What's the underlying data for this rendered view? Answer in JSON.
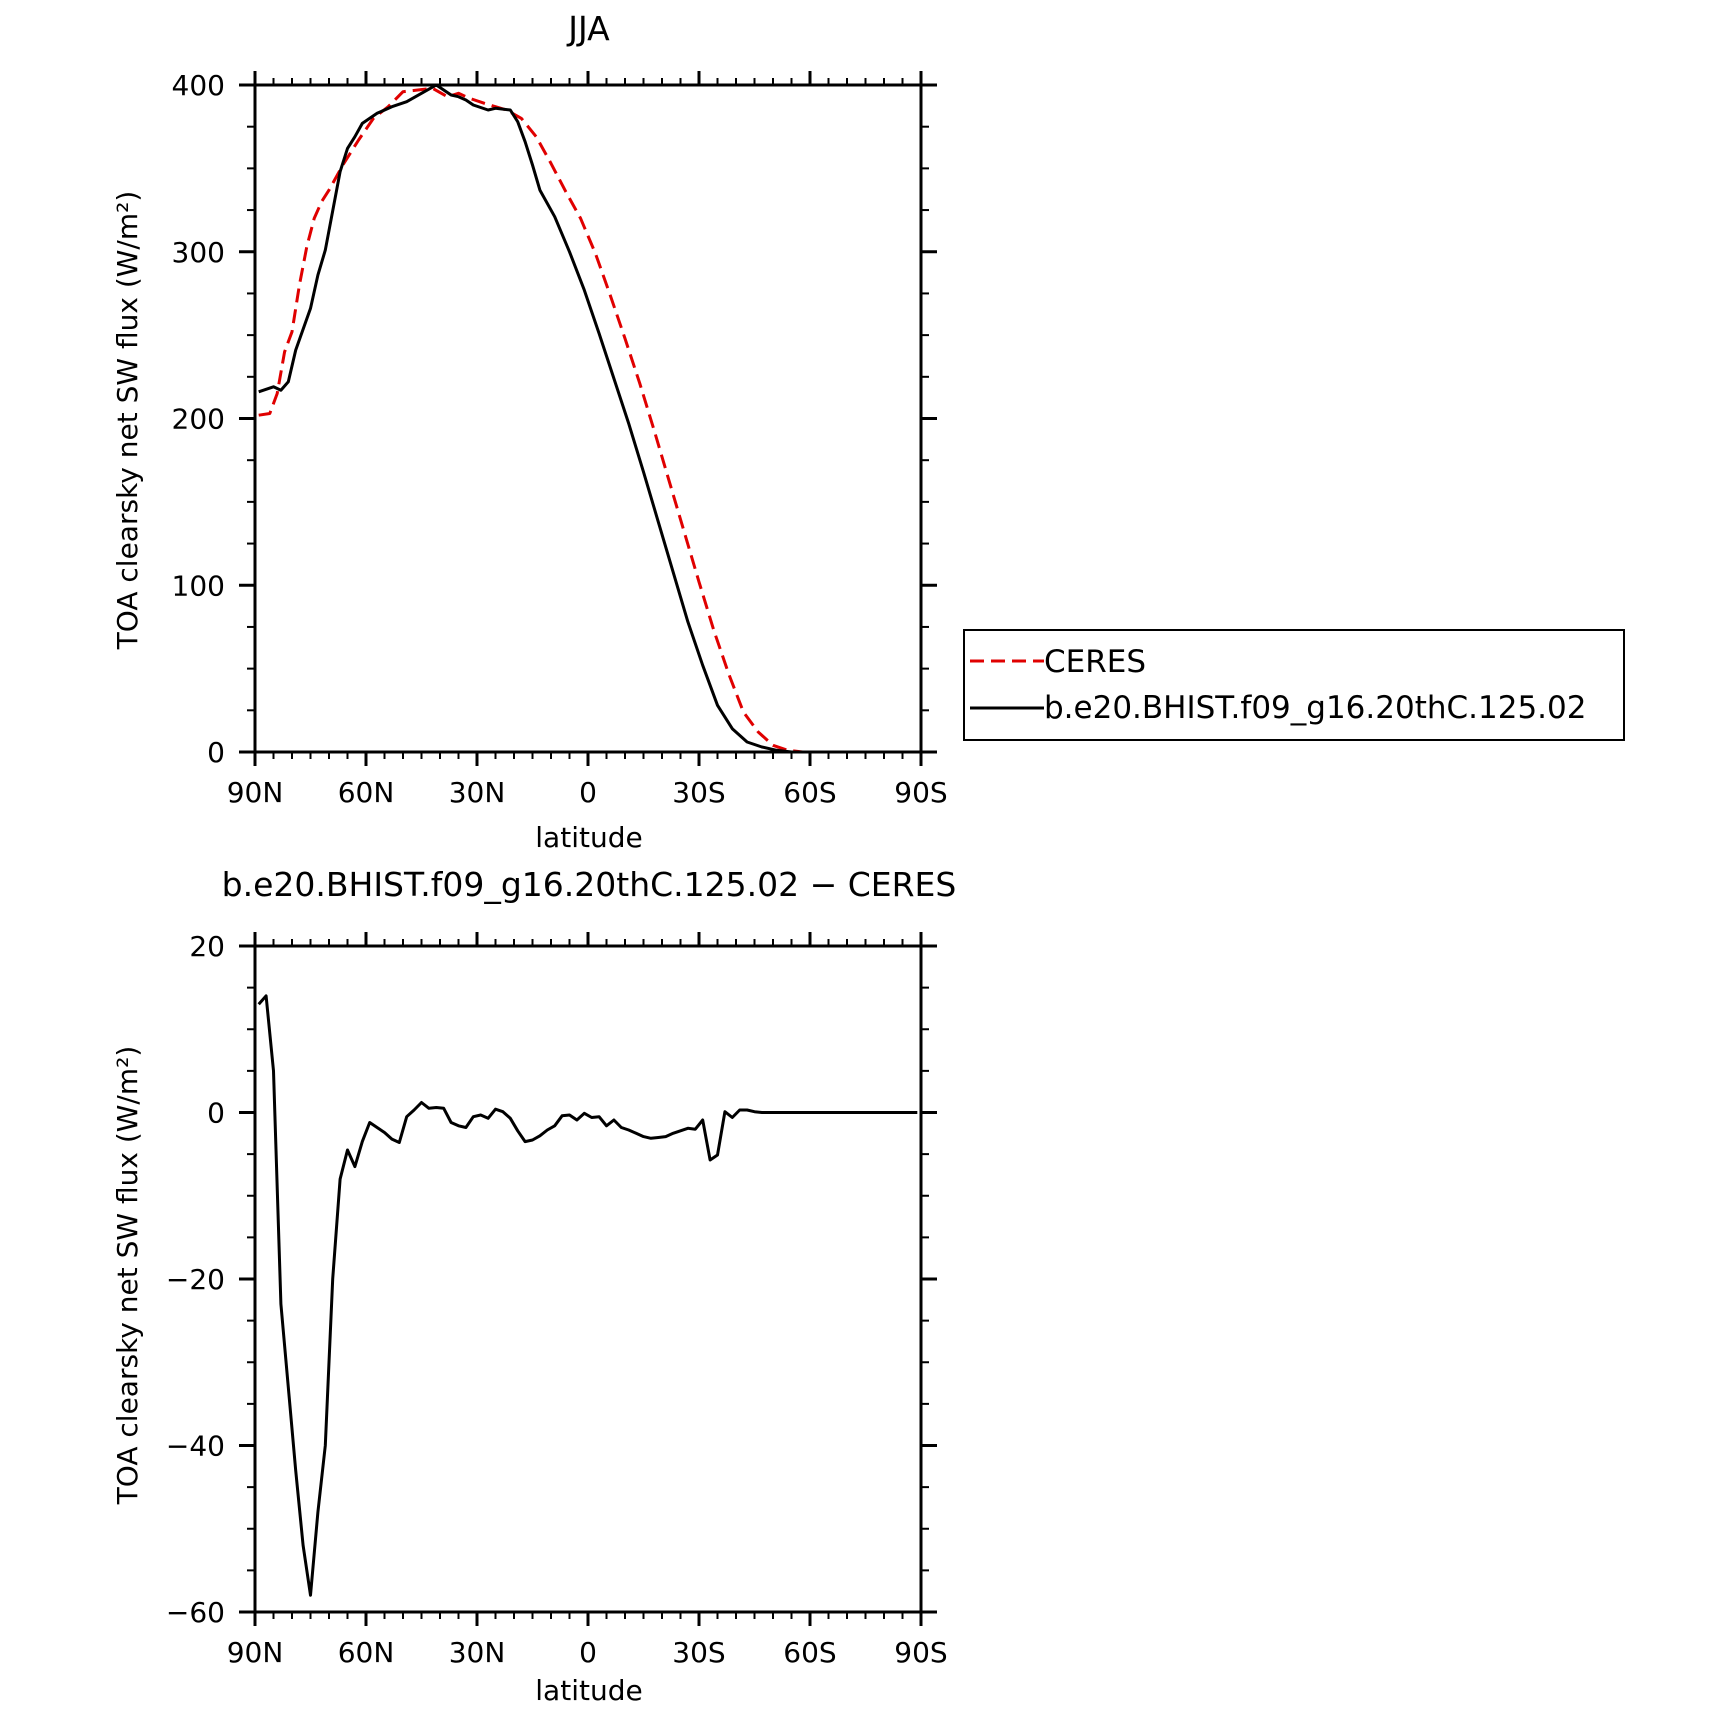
{
  "chart_data": [
    {
      "type": "line",
      "title": "JJA",
      "xlabel": "latitude",
      "ylabel": "TOA clearsky net SW flux (W/m²)",
      "xlim": [
        90,
        -90
      ],
      "ylim": [
        0,
        400
      ],
      "x_ticks": [
        90,
        60,
        30,
        0,
        -30,
        -60,
        -90
      ],
      "x_tick_labels": [
        "90N",
        "60N",
        "30N",
        "0",
        "30S",
        "60S",
        "90S"
      ],
      "y_ticks": [
        0,
        100,
        200,
        300,
        400
      ],
      "y_tick_labels": [
        "0",
        "100",
        "200",
        "300",
        "400"
      ],
      "legend": {
        "placement": "right",
        "entries": [
          "CERES",
          "b.e20.BHIST.f09_g16.20thC.125.02"
        ]
      },
      "series": [
        {
          "name": "CERES",
          "color": "#e00000",
          "dash": true,
          "x": [
            89,
            86,
            84,
            82,
            80,
            78,
            76,
            74,
            72,
            70,
            66,
            62,
            58,
            54,
            50,
            46,
            42,
            38,
            35,
            32,
            28,
            25,
            22,
            18,
            14,
            10,
            6,
            2,
            -2,
            -6,
            -10,
            -14,
            -18,
            -22,
            -26,
            -30,
            -34,
            -38,
            -42,
            -46,
            -50,
            -54,
            -58,
            -62,
            -66,
            -68,
            -70,
            -74,
            -78,
            -80
          ],
          "values": [
            202,
            203,
            215,
            240,
            252,
            280,
            303,
            320,
            330,
            337,
            353,
            367,
            380,
            387,
            396,
            397,
            398,
            393,
            395,
            392,
            389,
            387,
            385,
            380,
            369,
            353,
            336,
            320,
            299,
            274,
            248,
            221,
            192,
            162,
            132,
            102,
            73,
            47,
            24,
            12,
            4,
            1,
            0,
            0,
            0,
            0,
            0,
            0,
            0,
            0
          ]
        },
        {
          "name": "b.e20.BHIST.f09_g16.20thC.125.02",
          "color": "#000000",
          "dash": false,
          "x": [
            89,
            85,
            83,
            81,
            79,
            75,
            73,
            71,
            67,
            65,
            63,
            61,
            57,
            53,
            49,
            45,
            41,
            39,
            37,
            35,
            33,
            31,
            27,
            25,
            21,
            19,
            17,
            15,
            13,
            9,
            5,
            1,
            -3,
            -7,
            -11,
            -15,
            -19,
            -23,
            -27,
            -31,
            -35,
            -39,
            -43,
            -47,
            -51,
            -55,
            -59,
            -61,
            -63,
            -65,
            -67,
            -71,
            -75,
            -79,
            -80
          ],
          "values": [
            216,
            219,
            217,
            222,
            241,
            266,
            286,
            301,
            348,
            362,
            369,
            377,
            383,
            387,
            390,
            395,
            400,
            397,
            394,
            393,
            391,
            388,
            385,
            386,
            385,
            378,
            366,
            352,
            337,
            321,
            300,
            277,
            251,
            224,
            197,
            168,
            138,
            108,
            78,
            52,
            28,
            14,
            6,
            3,
            1,
            0,
            0,
            0,
            0,
            0,
            0,
            0,
            0,
            0,
            0
          ]
        }
      ]
    },
    {
      "type": "line",
      "title": "b.e20.BHIST.f09_g16.20thC.125.02 − CERES",
      "xlabel": "latitude",
      "ylabel": "TOA clearsky net SW flux (W/m²)",
      "xlim": [
        90,
        -90
      ],
      "ylim": [
        -60,
        20
      ],
      "x_ticks": [
        90,
        60,
        30,
        0,
        -30,
        -60,
        -90
      ],
      "x_tick_labels": [
        "90N",
        "60N",
        "30N",
        "0",
        "30S",
        "60S",
        "90S"
      ],
      "y_ticks": [
        -60,
        -40,
        -20,
        0,
        20
      ],
      "y_tick_labels": [
        "−60",
        "−40",
        "−20",
        "0",
        "20"
      ],
      "series": [
        {
          "color": "#000000",
          "dash": false,
          "x": [
            89,
            87,
            85,
            83,
            81,
            79,
            77,
            75,
            73,
            71,
            69,
            67,
            65,
            63,
            61,
            59,
            57,
            55,
            53,
            51,
            49,
            47,
            45,
            43,
            41,
            39,
            37,
            35,
            33,
            31,
            29,
            27,
            25,
            23,
            21,
            19,
            17,
            15,
            13,
            11,
            9,
            7,
            5,
            3,
            1,
            -1,
            -3,
            -5,
            -7,
            -9,
            -11,
            -13,
            -15,
            -17,
            -19,
            -21,
            -23,
            -25,
            -27,
            -29,
            -31,
            -33,
            -35,
            -37,
            -39,
            -41,
            -43,
            -45,
            -47,
            -49,
            -51,
            -53,
            -55,
            -57,
            -59,
            -61,
            -63,
            -65,
            -67,
            -69,
            -71,
            -73,
            -75,
            -77,
            -79,
            -81,
            -83,
            -85,
            -87,
            -89
          ],
          "values": [
            13,
            14,
            5,
            -23,
            -33,
            -43,
            -52,
            -58,
            -48,
            -40,
            -20,
            -8,
            -4.5,
            -6.5,
            -3.5,
            -1.2,
            -1.8,
            -2.4,
            -3.2,
            -3.6,
            -0.5,
            0.3,
            1.2,
            0.5,
            0.6,
            0.5,
            -1.2,
            -1.6,
            -1.8,
            -0.5,
            -0.3,
            -0.7,
            0.4,
            0.1,
            -0.7,
            -2.2,
            -3.5,
            -3.3,
            -2.8,
            -2.1,
            -1.6,
            -0.4,
            -0.3,
            -0.9,
            -0.1,
            -0.6,
            -0.5,
            -1.6,
            -0.9,
            -1.8,
            -2.1,
            -2.5,
            -2.9,
            -3.1,
            -3.0,
            -2.9,
            -2.5,
            -2.2,
            -1.9,
            -2.0,
            -0.9,
            -5.7,
            -5.1,
            0.1,
            -0.6,
            0.3,
            0.3,
            0.1,
            0.0,
            0.0,
            0.0,
            0.0,
            0.0,
            0.0,
            0.0,
            0.0,
            0.0,
            0.0,
            0.0,
            0.0,
            0.0,
            0.0,
            0.0,
            0.0,
            0.0,
            0.0,
            0.0,
            0.0,
            0.0,
            0.0
          ]
        }
      ]
    }
  ]
}
